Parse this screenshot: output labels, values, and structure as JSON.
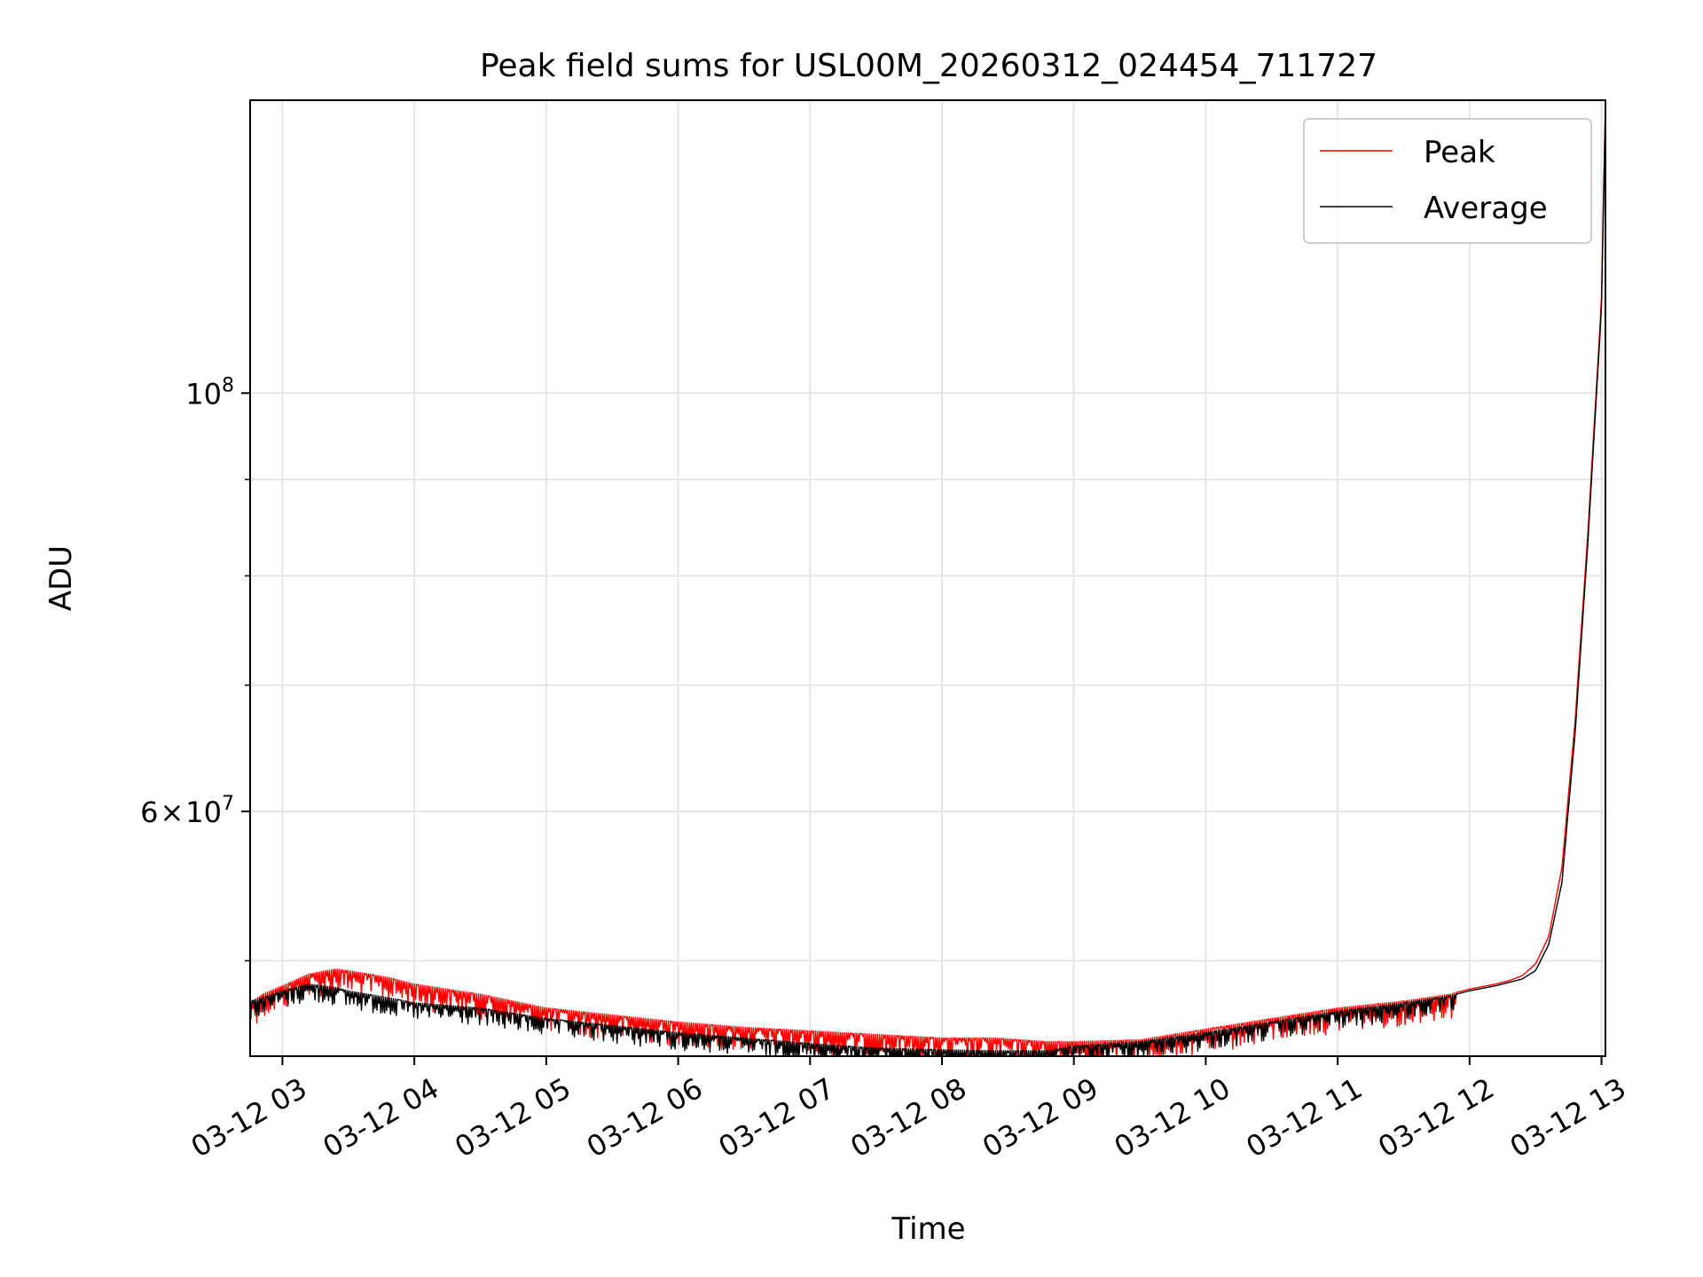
{
  "chart_data": {
    "type": "line",
    "title": "Peak field sums for USL00M_20260312_024454_711727",
    "xlabel": "Time",
    "ylabel": "ADU",
    "yscale": "log",
    "grid": true,
    "legend_position": "top-right",
    "x_unit": "hours since 03-12 00:00",
    "xlim": [
      2.755,
      13.03
    ],
    "ylim": [
      44500000,
      143000000
    ],
    "x_ticks": [
      3,
      4,
      5,
      6,
      7,
      8,
      9,
      10,
      11,
      12,
      13
    ],
    "x_tick_labels": [
      "03-12 03",
      "03-12 04",
      "03-12 05",
      "03-12 06",
      "03-12 07",
      "03-12 08",
      "03-12 09",
      "03-12 10",
      "03-12 11",
      "03-12 12",
      "03-12 13"
    ],
    "y_major_ticks": [
      {
        "value": 60000000,
        "base": "6",
        "sep": "×",
        "mant": "10",
        "exp": "7"
      },
      {
        "value": 100000000,
        "base": "",
        "sep": "",
        "mant": "10",
        "exp": "8"
      }
    ],
    "y_minor_ticks": [
      50000000,
      70000000,
      80000000,
      90000000
    ],
    "series": [
      {
        "name": "Peak",
        "color": "#ff0000",
        "x": [
          2.755,
          2.85,
          3.0,
          3.2,
          3.4,
          3.5,
          3.8,
          4.0,
          4.5,
          5.0,
          5.5,
          6.0,
          6.5,
          7.0,
          7.5,
          8.0,
          8.4,
          8.8,
          9.0,
          9.5,
          10.0,
          10.5,
          11.0,
          11.5,
          11.85,
          12.0,
          12.2,
          12.3,
          12.4,
          12.5,
          12.6,
          12.7,
          12.8,
          12.9,
          13.0,
          13.03
        ],
        "y": [
          47500000,
          48000000,
          48500000,
          49200000,
          49500000,
          49400000,
          49000000,
          48600000,
          48000000,
          47200000,
          46800000,
          46400000,
          46100000,
          45900000,
          45700000,
          45500000,
          45500000,
          45300000,
          45300000,
          45400000,
          46000000,
          46600000,
          47200000,
          47600000,
          48000000,
          48300000,
          48600000,
          48800000,
          49100000,
          49800000,
          51500000,
          56000000,
          67000000,
          85000000,
          112000000,
          143000000
        ]
      },
      {
        "name": "Average",
        "color": "#000000",
        "x": [
          2.755,
          2.85,
          3.0,
          3.2,
          3.4,
          3.5,
          3.8,
          4.0,
          4.5,
          5.0,
          5.5,
          6.0,
          6.5,
          7.0,
          7.5,
          8.0,
          8.4,
          8.8,
          9.0,
          9.5,
          10.0,
          10.5,
          11.0,
          11.5,
          11.85,
          12.0,
          12.2,
          12.3,
          12.4,
          12.5,
          12.6,
          12.7,
          12.8,
          12.9,
          13.0,
          13.03
        ],
        "y": [
          47600000,
          47800000,
          48200000,
          48600000,
          48400000,
          48200000,
          47800000,
          47500000,
          47200000,
          46600000,
          46200000,
          45800000,
          45500000,
          45200000,
          44950000,
          44850000,
          44800000,
          44800000,
          45050000,
          45300000,
          45800000,
          46400000,
          47000000,
          47500000,
          47900000,
          48200000,
          48500000,
          48700000,
          48900000,
          49400000,
          51000000,
          55000000,
          66000000,
          84000000,
          111000000,
          142000000
        ]
      }
    ],
    "legend": [
      {
        "label": "Peak",
        "color": "#ff0000"
      },
      {
        "label": "Average",
        "color": "#000000"
      }
    ]
  }
}
